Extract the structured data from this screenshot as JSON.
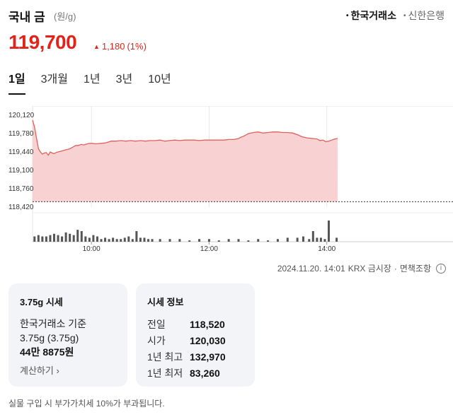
{
  "header": {
    "title": "국내 금",
    "unit": "(원/g)",
    "sources": [
      {
        "label": "한국거래소",
        "active": true
      },
      {
        "label": "신한은행",
        "active": false
      }
    ]
  },
  "price": {
    "current": "119,700",
    "change": "1,180",
    "change_pct": "(1%)",
    "color": "#e2231a"
  },
  "period_tabs": [
    "1일",
    "3개월",
    "1년",
    "3년",
    "10년"
  ],
  "active_period": "1일",
  "meta": {
    "timestamp": "2024.11.20. 14:01",
    "market": "KRX 금시장",
    "disclaimer": "면책조항"
  },
  "card_375": {
    "title": "3.75g 시세",
    "line1": "한국거래소 기준",
    "line2": "3.75g (3.75g)",
    "value": "44만 8875원",
    "link": "계산하기"
  },
  "card_info": {
    "title": "시세 정보",
    "rows": [
      {
        "label": "전일",
        "value": "118,520"
      },
      {
        "label": "시가",
        "value": "120,030"
      },
      {
        "label": "1년 최고",
        "value": "132,970"
      },
      {
        "label": "1년 최저",
        "value": "83,260"
      }
    ]
  },
  "footnote": "실물 구입 시 부가가치세 10%가 부과됩니다.",
  "chart_data": {
    "type": "area",
    "line_color": "#e0605a",
    "fill_color": "#f8d2d2",
    "y_ticks": [
      "120,120",
      "119,780",
      "119,440",
      "119,100",
      "118,760",
      "118,420"
    ],
    "y_tick_values": [
      120120,
      119780,
      119440,
      119100,
      118760,
      118420
    ],
    "ylim": [
      118420,
      120120
    ],
    "x_ticks": [
      "10:00",
      "12:00",
      "14:00"
    ],
    "x_tick_minutes": [
      600,
      720,
      840
    ],
    "xlim": [
      540,
      960
    ],
    "baseline": 118520,
    "series": [
      {
        "x": [
          540,
          542,
          544,
          546,
          548,
          550,
          552,
          554,
          556,
          558,
          560,
          562,
          564,
          566,
          568,
          570,
          572,
          574,
          576,
          578,
          580,
          582,
          584,
          586,
          588,
          590,
          592,
          594,
          596,
          598,
          600,
          605,
          610,
          615,
          620,
          625,
          630,
          635,
          640,
          645,
          650,
          655,
          660,
          665,
          670,
          675,
          680,
          685,
          690,
          695,
          700,
          705,
          710,
          715,
          720,
          725,
          730,
          735,
          740,
          745,
          750,
          752,
          755,
          760,
          765,
          770,
          775,
          780,
          785,
          790,
          795,
          800,
          805,
          810,
          815,
          820,
          825,
          830,
          833,
          836,
          839,
          842,
          845,
          848,
          851
        ],
        "y": [
          120030,
          119900,
          119700,
          119500,
          119440,
          119400,
          119420,
          119430,
          119380,
          119440,
          119420,
          119410,
          119430,
          119440,
          119450,
          119460,
          119470,
          119480,
          119490,
          119500,
          119520,
          119540,
          119560,
          119560,
          119570,
          119580,
          119570,
          119580,
          119590,
          119600,
          119600,
          119590,
          119600,
          119610,
          119640,
          119640,
          119650,
          119640,
          119650,
          119640,
          119650,
          119640,
          119650,
          119650,
          119660,
          119640,
          119650,
          119660,
          119650,
          119660,
          119660,
          119660,
          119650,
          119660,
          119660,
          119660,
          119660,
          119660,
          119670,
          119670,
          119690,
          119710,
          119730,
          119780,
          119800,
          119810,
          119790,
          119800,
          119810,
          119810,
          119800,
          119800,
          119790,
          119760,
          119720,
          119700,
          119690,
          119680,
          119650,
          119660,
          119630,
          119640,
          119660,
          119680,
          119690
        ]
      }
    ],
    "volume": {
      "x": [
        542,
        546,
        550,
        554,
        558,
        562,
        566,
        570,
        574,
        578,
        582,
        586,
        590,
        594,
        598,
        602,
        606,
        610,
        614,
        618,
        622,
        626,
        630,
        634,
        638,
        642,
        646,
        650,
        654,
        658,
        662,
        670,
        680,
        690,
        700,
        710,
        720,
        730,
        740,
        750,
        760,
        770,
        780,
        790,
        800,
        810,
        816,
        822,
        826,
        830,
        834,
        838,
        842,
        850
      ],
      "y": [
        4,
        5,
        4,
        4,
        5,
        6,
        5,
        4,
        7,
        6,
        5,
        9,
        8,
        4,
        3,
        5,
        4,
        2,
        3,
        2,
        3,
        2,
        2,
        3,
        4,
        2,
        8,
        3,
        3,
        2,
        2,
        2,
        2,
        2,
        1,
        2,
        2,
        1,
        2,
        2,
        1,
        2,
        1,
        2,
        3,
        3,
        4,
        2,
        8,
        3,
        3,
        2,
        16,
        3
      ]
    }
  }
}
